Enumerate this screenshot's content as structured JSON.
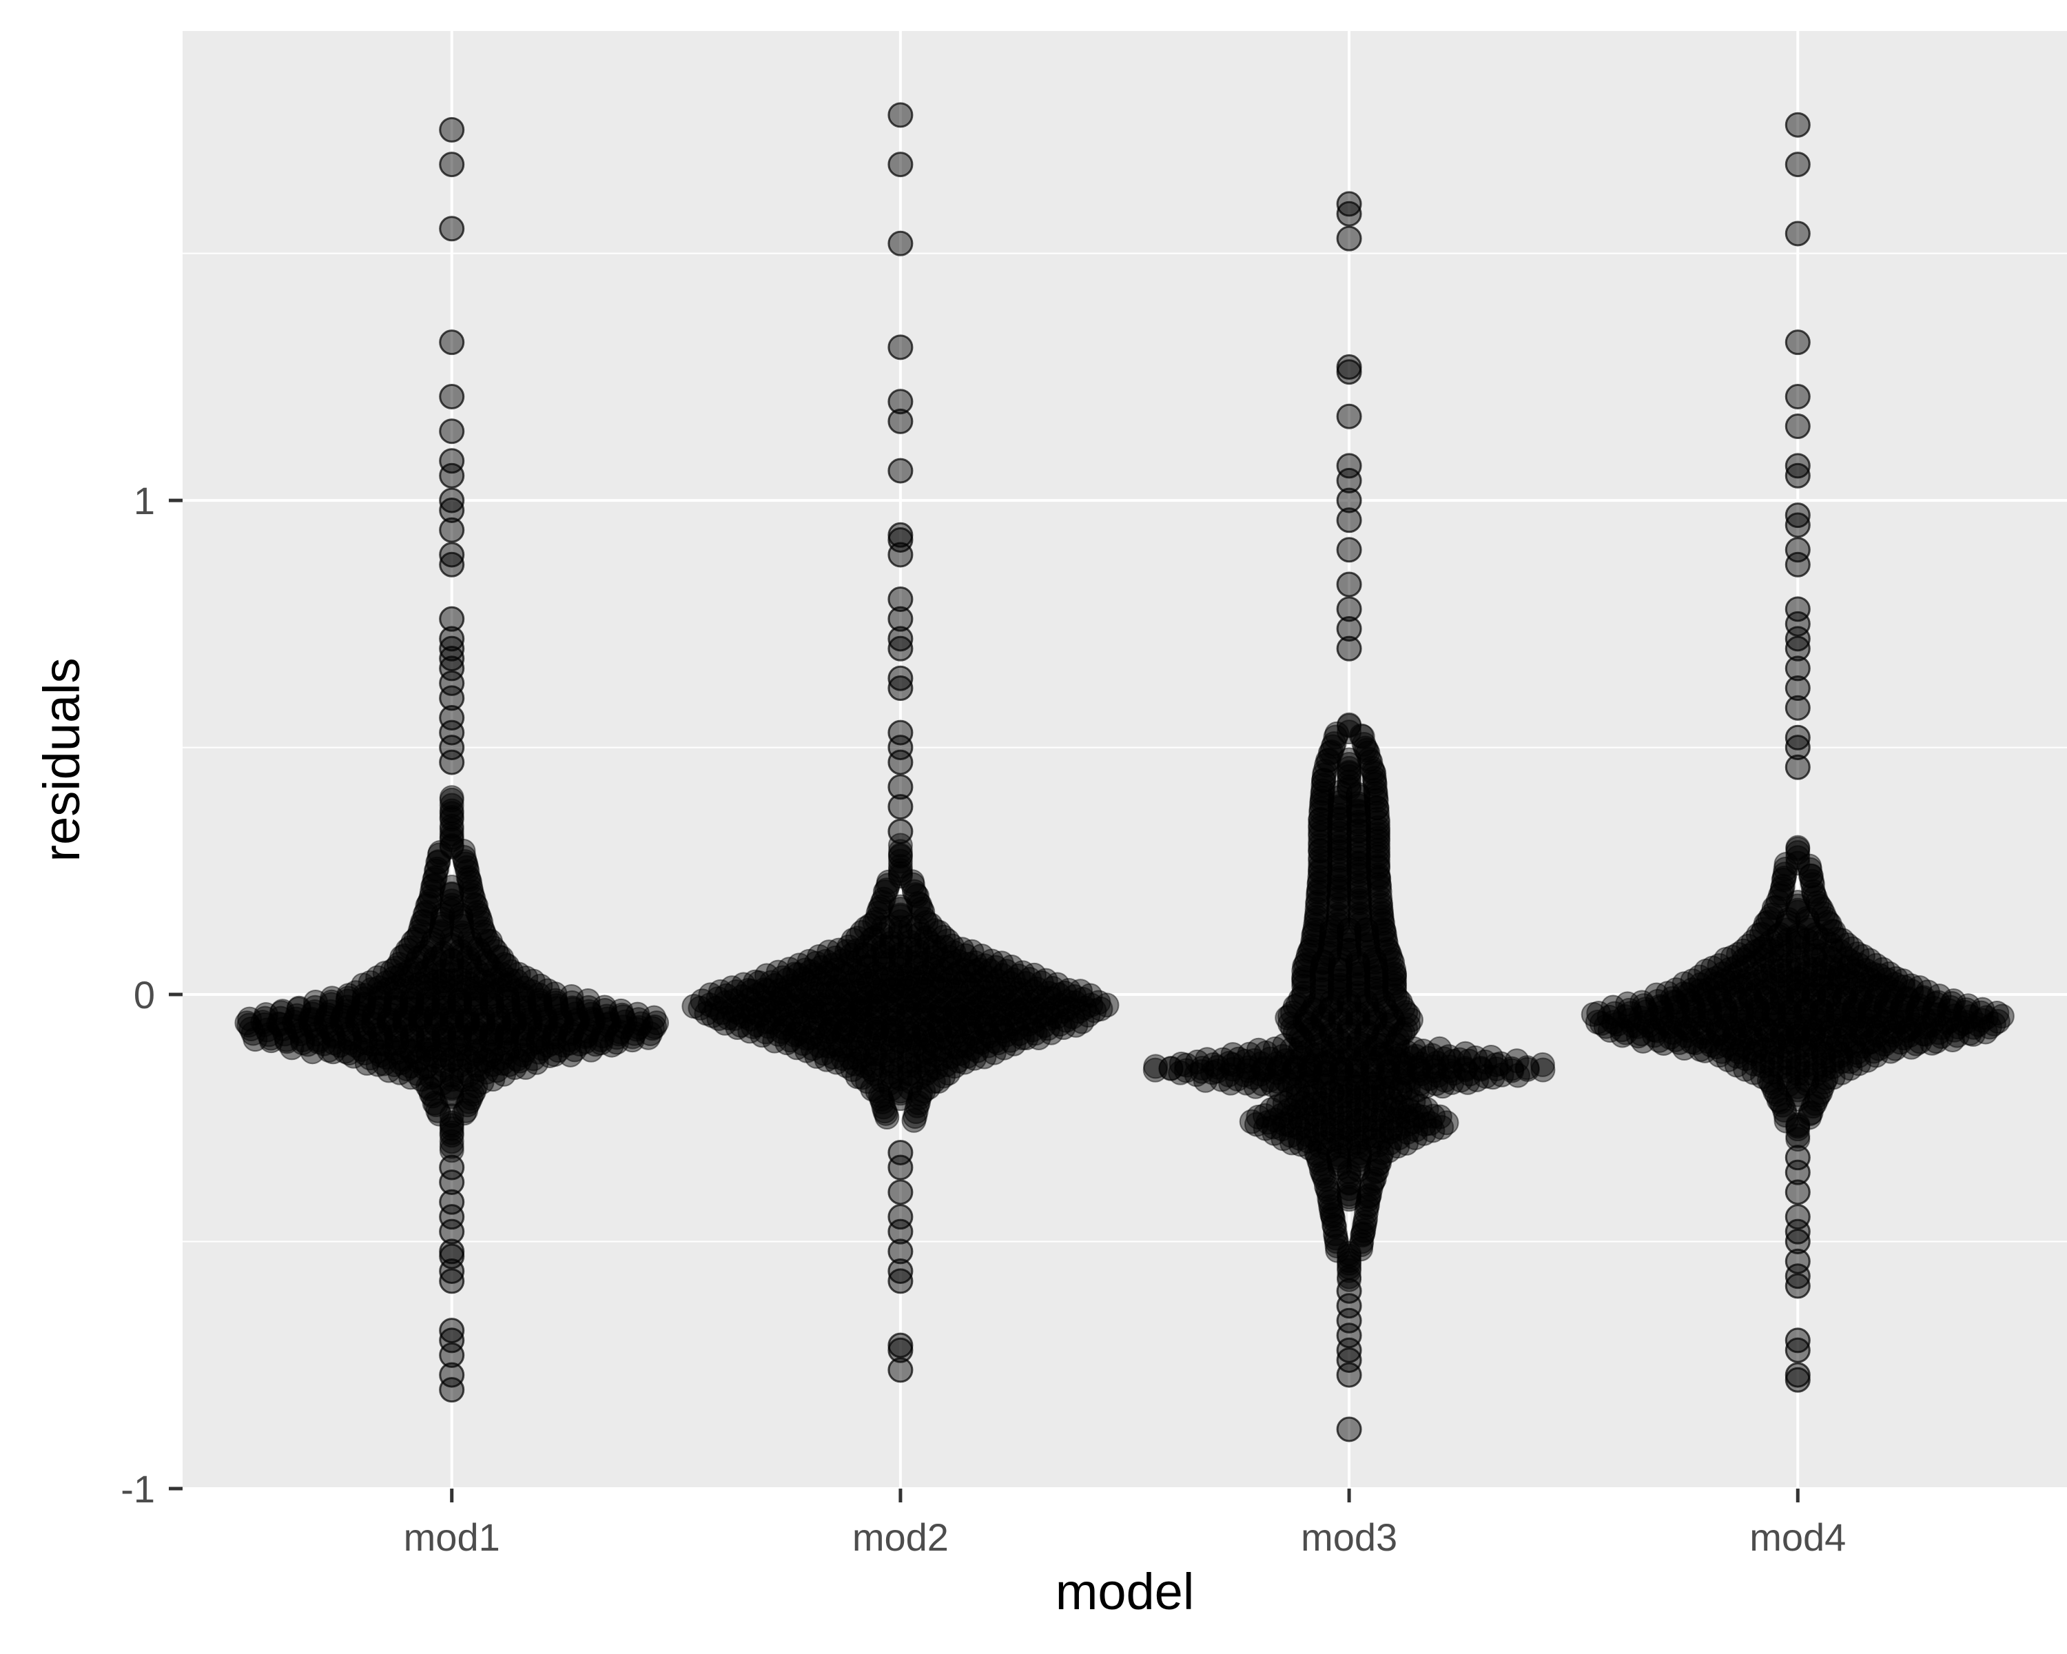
{
  "chart_data": {
    "type": "scatter",
    "subtype": "beeswarm",
    "title": "",
    "xlabel": "model",
    "ylabel": "residuals",
    "categories": [
      "mod1",
      "mod2",
      "mod3",
      "mod4"
    ],
    "ylim": [
      -1.0,
      1.95
    ],
    "y_ticks": [
      -1,
      0,
      1
    ],
    "y_tick_labels": [
      "-1",
      "0",
      "1"
    ],
    "grid": true,
    "legend": "none",
    "point_color": "#000000",
    "point_opacity": 0.45,
    "background_color": "#ebebeb",
    "grid_color": "#ffffff",
    "series": [
      {
        "category": "mod1",
        "tail_points": [
          1.75,
          1.68,
          1.55,
          1.32,
          1.21,
          1.14,
          1.08,
          1.05,
          1.0,
          0.98,
          0.94,
          0.89,
          0.87,
          0.76,
          0.72,
          0.7,
          0.68,
          0.66,
          0.63,
          0.6,
          0.56,
          0.53,
          0.5,
          0.47,
          -0.35,
          -0.38,
          -0.42,
          -0.45,
          -0.48,
          -0.52,
          -0.53,
          -0.56,
          -0.58,
          -0.68,
          -0.7,
          -0.73,
          -0.77,
          -0.8
        ],
        "density_profile": [
          [
            0.4,
            0.02
          ],
          [
            0.3,
            0.05
          ],
          [
            0.2,
            0.1
          ],
          [
            0.12,
            0.16
          ],
          [
            0.05,
            0.28
          ],
          [
            0.0,
            0.5
          ],
          [
            -0.05,
            1.0
          ],
          [
            -0.09,
            0.95
          ],
          [
            -0.13,
            0.45
          ],
          [
            -0.18,
            0.12
          ],
          [
            -0.25,
            0.05
          ],
          [
            -0.32,
            0.03
          ]
        ]
      },
      {
        "category": "mod2",
        "tail_points": [
          1.78,
          1.68,
          1.52,
          1.31,
          1.2,
          1.16,
          1.06,
          0.93,
          0.92,
          0.89,
          0.8,
          0.76,
          0.72,
          0.7,
          0.64,
          0.62,
          0.53,
          0.5,
          0.47,
          0.42,
          0.38,
          0.33,
          -0.32,
          -0.35,
          -0.4,
          -0.45,
          -0.48,
          -0.52,
          -0.56,
          -0.58,
          -0.71,
          -0.72,
          -0.76
        ],
        "density_profile": [
          [
            0.3,
            0.03
          ],
          [
            0.22,
            0.06
          ],
          [
            0.15,
            0.12
          ],
          [
            0.1,
            0.25
          ],
          [
            0.05,
            0.55
          ],
          [
            0.0,
            0.9
          ],
          [
            -0.02,
            1.0
          ],
          [
            -0.06,
            0.85
          ],
          [
            -0.1,
            0.55
          ],
          [
            -0.15,
            0.25
          ],
          [
            -0.2,
            0.1
          ],
          [
            -0.26,
            0.06
          ]
        ]
      },
      {
        "category": "mod3",
        "tail_points": [
          1.6,
          1.58,
          1.53,
          1.27,
          1.26,
          1.17,
          1.07,
          1.04,
          1.0,
          0.96,
          0.9,
          0.83,
          0.78,
          0.74,
          0.7,
          -0.6,
          -0.63,
          -0.66,
          -0.69,
          -0.72,
          -0.74,
          -0.77,
          -0.88
        ],
        "density_profile": [
          [
            0.55,
            0.04
          ],
          [
            0.45,
            0.12
          ],
          [
            0.35,
            0.14
          ],
          [
            0.25,
            0.14
          ],
          [
            0.15,
            0.16
          ],
          [
            0.1,
            0.18
          ],
          [
            0.05,
            0.22
          ],
          [
            0.0,
            0.22
          ],
          [
            -0.05,
            0.3
          ],
          [
            -0.1,
            0.22
          ],
          [
            -0.15,
            1.0
          ],
          [
            -0.2,
            0.24
          ],
          [
            -0.26,
            0.48
          ],
          [
            -0.32,
            0.16
          ],
          [
            -0.4,
            0.1
          ],
          [
            -0.5,
            0.06
          ],
          [
            -0.58,
            0.04
          ]
        ]
      },
      {
        "category": "mod4",
        "tail_points": [
          1.76,
          1.68,
          1.54,
          1.32,
          1.21,
          1.15,
          1.07,
          1.05,
          0.97,
          0.95,
          0.9,
          0.87,
          0.78,
          0.75,
          0.72,
          0.7,
          0.66,
          0.62,
          0.58,
          0.52,
          0.5,
          0.46,
          -0.33,
          -0.36,
          -0.4,
          -0.45,
          -0.48,
          -0.5,
          -0.54,
          -0.57,
          -0.59,
          -0.7,
          -0.72,
          -0.77,
          -0.78
        ],
        "density_profile": [
          [
            0.3,
            0.04
          ],
          [
            0.2,
            0.08
          ],
          [
            0.12,
            0.18
          ],
          [
            0.08,
            0.3
          ],
          [
            0.03,
            0.5
          ],
          [
            0.0,
            0.65
          ],
          [
            -0.04,
            1.0
          ],
          [
            -0.08,
            0.9
          ],
          [
            -0.12,
            0.4
          ],
          [
            -0.17,
            0.14
          ],
          [
            -0.24,
            0.06
          ],
          [
            -0.3,
            0.04
          ]
        ]
      }
    ]
  }
}
